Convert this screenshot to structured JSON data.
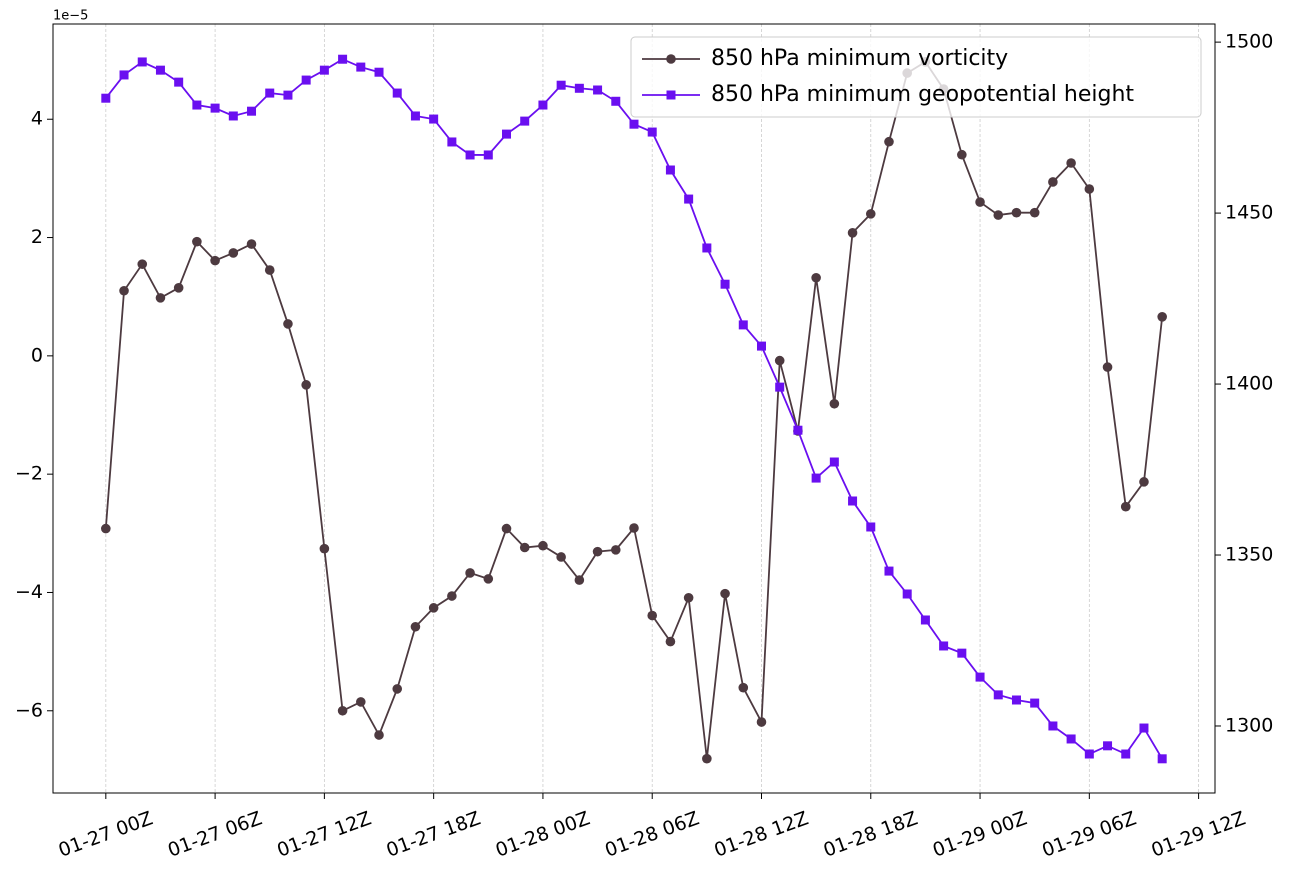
{
  "chart_data": {
    "type": "line",
    "x": [
      0,
      1,
      2,
      3,
      4,
      5,
      6,
      7,
      8,
      9,
      10,
      11,
      12,
      13,
      14,
      15,
      16,
      17,
      18,
      19,
      20,
      21,
      22,
      23,
      24,
      25,
      26,
      27,
      28,
      29,
      30,
      31,
      32,
      33,
      34,
      35,
      36,
      37,
      38,
      39,
      40,
      41,
      42,
      43,
      44,
      45,
      46,
      47,
      48,
      49,
      50,
      51,
      52,
      53,
      54,
      55,
      56,
      57,
      58
    ],
    "xlim": [
      -2.9,
      60.9
    ],
    "xticks": [
      {
        "value": 0,
        "label": "01-27 00Z"
      },
      {
        "value": 6,
        "label": "01-27 06Z"
      },
      {
        "value": 12,
        "label": "01-27 12Z"
      },
      {
        "value": 18,
        "label": "01-27 18Z"
      },
      {
        "value": 24,
        "label": "01-28 00Z"
      },
      {
        "value": 30,
        "label": "01-28 06Z"
      },
      {
        "value": 36,
        "label": "01-28 12Z"
      },
      {
        "value": 42,
        "label": "01-28 18Z"
      },
      {
        "value": 48,
        "label": "01-29 00Z"
      },
      {
        "value": 54,
        "label": "01-29 06Z"
      },
      {
        "value": 60,
        "label": "01-29 12Z"
      }
    ],
    "ylim": [
      -7.39,
      5.61
    ],
    "yticks": [
      {
        "value": -6,
        "label": "−6"
      },
      {
        "value": -4,
        "label": "−4"
      },
      {
        "value": -2,
        "label": "−2"
      },
      0,
      2,
      4
    ],
    "y_offset_label": "1e−5",
    "y2lim": [
      1280.4,
      1505.3
    ],
    "y2ticks": [
      1300,
      1350,
      1400,
      1450,
      1500
    ],
    "grid": "x",
    "legend": "upper right",
    "series": [
      {
        "name": "850 hPa minimum vorticity",
        "color": "#4d3a40",
        "marker": "circle",
        "values": [
          -2.92,
          1.1,
          1.55,
          0.98,
          1.15,
          1.93,
          1.61,
          1.74,
          1.89,
          1.45,
          0.54,
          -0.49,
          -3.26,
          -6.0,
          -5.85,
          -6.41,
          -5.63,
          -4.58,
          -4.26,
          -4.06,
          -3.67,
          -3.77,
          -2.92,
          -3.24,
          -3.21,
          -3.4,
          -3.79,
          -3.31,
          -3.28,
          -2.91,
          -4.39,
          -4.83,
          -4.09,
          -6.81,
          -4.02,
          -5.61,
          -6.19,
          -0.08,
          -1.27,
          1.32,
          -0.81,
          2.08,
          2.4,
          3.62,
          4.78,
          4.97,
          4.51,
          3.4,
          2.6,
          2.38,
          2.42,
          2.42,
          2.94,
          3.26,
          2.82,
          -0.19,
          -2.55,
          -2.13,
          0.66
        ]
      },
      {
        "name": "850 hPa minimum geopotential height",
        "color": "#6a0ff0",
        "marker": "square",
        "axis": "y2",
        "values": [
          1483.6,
          1490.4,
          1494.2,
          1491.8,
          1488.3,
          1481.6,
          1480.7,
          1478.4,
          1479.8,
          1485.1,
          1484.5,
          1488.9,
          1491.8,
          1495.0,
          1492.7,
          1491.2,
          1485.1,
          1478.4,
          1477.5,
          1470.8,
          1467.0,
          1467.0,
          1473.1,
          1476.9,
          1481.6,
          1487.4,
          1486.5,
          1486.0,
          1482.7,
          1476.0,
          1473.7,
          1462.6,
          1454.1,
          1439.8,
          1429.2,
          1417.3,
          1411.1,
          1399.1,
          1386.5,
          1372.5,
          1377.2,
          1365.8,
          1358.2,
          1345.3,
          1338.6,
          1331.0,
          1323.4,
          1321.3,
          1314.3,
          1309.1,
          1307.6,
          1306.7,
          1300.0,
          1296.2,
          1291.8,
          1294.2,
          1291.8,
          1299.4,
          1290.4
        ]
      }
    ]
  }
}
